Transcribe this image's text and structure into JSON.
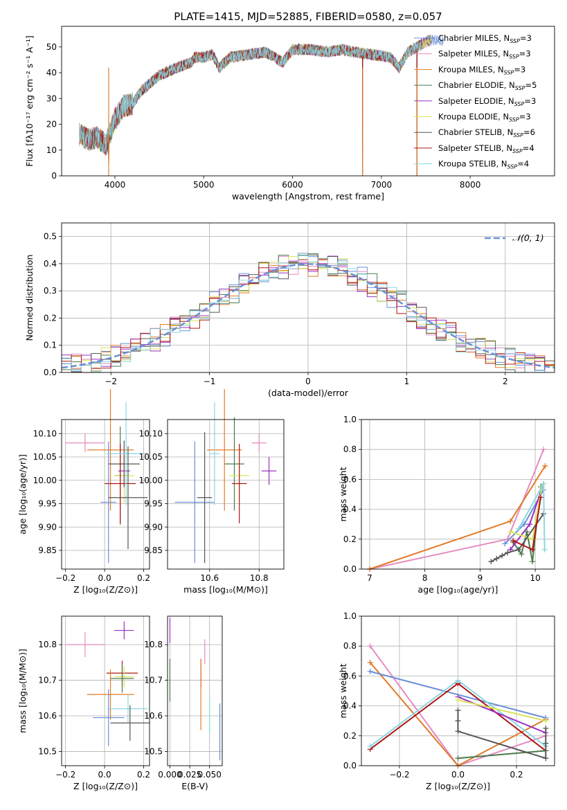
{
  "figure_title": "PLATE=1415, MJD=52885, FIBERID=0580, z=0.057",
  "colors": {
    "Chabrier MILES": "#6a8fd8",
    "Salpeter MILES": "#e58ac0",
    "Kroupa MILES": "#e07b28",
    "Chabrier ELODIE": "#4a7a4a",
    "Salpeter ELODIE": "#9b2fbf",
    "Kroupa ELODIE": "#d9e35a",
    "Chabrier STELIB": "#555555",
    "Salpeter STELIB": "#b01414",
    "Kroupa STELIB": "#8ad7e2"
  },
  "chart_data": [
    {
      "id": "spectrum",
      "type": "line",
      "title": "PLATE=1415, MJD=52885, FIBERID=0580, z=0.057",
      "xlabel": "wavelength [Angstrom, rest frame]",
      "ylabel": "Flux [fλ10⁻¹⁷ erg cm⁻² s⁻¹ A⁻¹]",
      "xlim": [
        3400,
        8950
      ],
      "ylim": [
        0,
        58
      ],
      "xticks": [
        4000,
        5000,
        6000,
        7000,
        8000
      ],
      "yticks": [
        0,
        10,
        20,
        30,
        40,
        50
      ],
      "grid": false,
      "legend_position": "right",
      "legend": [
        "Chabrier MILES, N_SSP=3",
        "Salpeter MILES, N_SSP=3",
        "Kroupa MILES, N_SSP=3",
        "Chabrier ELODIE, N_SSP=5",
        "Salpeter ELODIE, N_SSP=3",
        "Kroupa ELODIE, N_SSP=3",
        "Chabrier STELIB, N_SSP=6",
        "Salpeter STELIB, N_SSP=4",
        "Kroupa STELIB, N_SSP=4"
      ],
      "continuum": {
        "x": [
          3600,
          3700,
          3800,
          3900,
          3950,
          4000,
          4100,
          4200,
          4300,
          4400,
          4500,
          4700,
          4861,
          4900,
          5000,
          5100,
          5175,
          5300,
          5500,
          5700,
          5890,
          6000,
          6200,
          6400,
          6563,
          6700,
          6900,
          7100,
          7200,
          7300,
          7400,
          7500,
          7600,
          7700
        ],
        "y": [
          16,
          14,
          15,
          12,
          17,
          22,
          27,
          28,
          33,
          36,
          39,
          42,
          44,
          46,
          46,
          47,
          42,
          46,
          47,
          48,
          44,
          49,
          49,
          48,
          49,
          48,
          47,
          46,
          42,
          48,
          50,
          52,
          53,
          52
        ]
      },
      "features": [
        {
          "name": "drop-3930",
          "x": 3930,
          "y": 0
        },
        {
          "name": "drop-6790",
          "x": 6790,
          "y": 0
        },
        {
          "name": "drop-7400",
          "x": 7400,
          "y": 0
        }
      ]
    },
    {
      "id": "residuals",
      "type": "line",
      "xlabel": "(data-model)/error",
      "ylabel": "Normed distribution",
      "xlim": [
        -2.5,
        2.5
      ],
      "ylim": [
        0,
        0.55
      ],
      "xticks": [
        -2,
        -1,
        0,
        1,
        2
      ],
      "yticks": [
        0.0,
        0.1,
        0.2,
        0.3,
        0.4,
        0.5
      ],
      "grid": true,
      "legend_position": "top-right",
      "legend": [
        "𝒩(0, 1)"
      ],
      "bin_width": 0.1
    },
    {
      "id": "age-vs-z",
      "type": "scatter",
      "xlabel": "Z [log₁₀(Z/Z⊙)]",
      "ylabel": "age  [log₁₀(age/yr)]",
      "xlim": [
        -0.22,
        0.23
      ],
      "ylim": [
        9.81,
        10.13
      ],
      "xticks": [
        -0.2,
        0.0,
        0.2
      ],
      "yticks": [
        9.85,
        9.9,
        9.95,
        10.0,
        10.05,
        10.1
      ],
      "grid": true,
      "points": [
        {
          "model": "Salpeter MILES",
          "x": -0.1,
          "y": 10.08,
          "xerr": 0.1,
          "yerr": 0.02
        },
        {
          "model": "Kroupa MILES",
          "x": 0.03,
          "y": 10.065,
          "xerr": 0.12,
          "yerr": 0.13
        },
        {
          "model": "Chabrier MILES",
          "x": 0.02,
          "y": 9.953,
          "xerr": 0.04,
          "yerr": 0.13
        },
        {
          "model": "Chabrier ELODIE",
          "x": 0.08,
          "y": 10.01,
          "xerr": 0.03,
          "yerr": 0.105
        },
        {
          "model": "Salpeter ELODIE",
          "x": 0.1,
          "y": 10.02,
          "xerr": 0.03,
          "yerr": 0.03
        },
        {
          "model": "Kroupa ELODIE",
          "x": 0.1,
          "y": 10.01,
          "xerr": 0.05,
          "yerr": 0.06
        },
        {
          "model": "Chabrier STELIB",
          "x": 0.1,
          "y": 10.035,
          "xerr": 0.08,
          "yerr": 0.05
        },
        {
          "model": "Salpeter STELIB",
          "x": 0.08,
          "y": 9.993,
          "xerr": 0.08,
          "yerr": 0.085
        },
        {
          "model": "Kroupa STELIB",
          "x": 0.11,
          "y": 10.057,
          "xerr": 0.1,
          "yerr": 0.11
        },
        {
          "model": "Chabrier STELIB",
          "x": 0.12,
          "y": 9.963,
          "xerr": 0.1,
          "yerr": 0.11
        }
      ]
    },
    {
      "id": "age-vs-mass",
      "type": "scatter",
      "xlabel": "mass [log₁₀(M/M⊙)]",
      "xlim": [
        10.43,
        10.9
      ],
      "ylim": [
        9.81,
        10.13
      ],
      "xticks": [
        10.6,
        10.8
      ],
      "yticks": [
        9.85,
        9.9,
        9.95,
        10.0,
        10.05,
        10.1
      ],
      "grid": true,
      "points": [
        {
          "model": "Salpeter MILES",
          "x": 10.8,
          "y": 10.08,
          "xerr": 0.03,
          "yerr": 0.02
        },
        {
          "model": "Kroupa MILES",
          "x": 10.66,
          "y": 10.065,
          "xerr": 0.07,
          "yerr": 0.13
        },
        {
          "model": "Chabrier MILES",
          "x": 10.54,
          "y": 9.953,
          "xerr": 0.08,
          "yerr": 0.13
        },
        {
          "model": "Chabrier STELIB",
          "x": 10.58,
          "y": 9.963,
          "xerr": 0.03,
          "yerr": 0.14
        },
        {
          "model": "Chabrier ELODIE",
          "x": 10.7,
          "y": 10.035,
          "xerr": 0.04,
          "yerr": 0.1
        },
        {
          "model": "Salpeter ELODIE",
          "x": 10.84,
          "y": 10.02,
          "xerr": 0.03,
          "yerr": 0.03
        },
        {
          "model": "Kroupa ELODIE",
          "x": 10.72,
          "y": 10.01,
          "xerr": 0.04,
          "yerr": 0.06
        },
        {
          "model": "Salpeter STELIB",
          "x": 10.72,
          "y": 9.993,
          "xerr": 0.03,
          "yerr": 0.085
        },
        {
          "model": "Kroupa STELIB",
          "x": 10.62,
          "y": 10.057,
          "xerr": 0.02,
          "yerr": 0.11
        }
      ]
    },
    {
      "id": "mass-weight-vs-age",
      "type": "line",
      "xlabel": "age  [log₁₀(age/yr)]",
      "ylabel": "mass weight",
      "xlim": [
        6.85,
        10.35
      ],
      "ylim": [
        0,
        1
      ],
      "xticks": [
        7,
        8,
        9,
        10
      ],
      "yticks": [
        0.0,
        0.2,
        0.4,
        0.6,
        0.8,
        1.0
      ],
      "grid": true,
      "series": [
        {
          "model": "Salpeter MILES",
          "x": [
            7.0,
            9.5,
            10.15
          ],
          "y": [
            0.0,
            0.2,
            0.8
          ]
        },
        {
          "model": "Kroupa MILES",
          "x": [
            7.0,
            9.55,
            10.18
          ],
          "y": [
            0.0,
            0.32,
            0.69
          ]
        },
        {
          "model": "Chabrier MILES",
          "x": [
            9.45,
            9.8,
            10.15
          ],
          "y": [
            0.17,
            0.3,
            0.53
          ]
        },
        {
          "model": "Chabrier ELODIE",
          "x": [
            9.6,
            9.75,
            9.85,
            9.95,
            10.1
          ],
          "y": [
            0.18,
            0.1,
            0.25,
            0.05,
            0.55
          ]
        },
        {
          "model": "Salpeter ELODIE",
          "x": [
            9.55,
            9.9,
            10.15
          ],
          "y": [
            0.13,
            0.3,
            0.57
          ]
        },
        {
          "model": "Kroupa ELODIE",
          "x": [
            9.55,
            9.95,
            10.12
          ],
          "y": [
            0.25,
            0.2,
            0.55
          ]
        },
        {
          "model": "Chabrier STELIB",
          "x": [
            9.2,
            9.3,
            9.4,
            9.5,
            9.7,
            10.15
          ],
          "y": [
            0.05,
            0.07,
            0.09,
            0.11,
            0.13,
            0.37
          ]
        },
        {
          "model": "Salpeter STELIB",
          "x": [
            9.6,
            9.95,
            10.1
          ],
          "y": [
            0.19,
            0.13,
            0.48
          ]
        },
        {
          "model": "Kroupa STELIB",
          "x": [
            9.7,
            10.15,
            10.17
          ],
          "y": [
            0.27,
            0.57,
            0.13
          ]
        }
      ]
    },
    {
      "id": "mass-vs-z",
      "type": "scatter",
      "xlabel": "Z [log₁₀(Z/Z⊙)]",
      "ylabel": "mass [log₁₀(M/M⊙)]",
      "xlim": [
        -0.22,
        0.23
      ],
      "ylim": [
        10.46,
        10.88
      ],
      "xticks": [
        -0.2,
        0.0,
        0.2
      ],
      "yticks": [
        10.5,
        10.6,
        10.7,
        10.8
      ],
      "grid": true,
      "points": [
        {
          "model": "Salpeter MILES",
          "x": -0.1,
          "y": 10.8,
          "xerr": 0.1,
          "yerr": 0.035
        },
        {
          "model": "Salpeter ELODIE",
          "x": 0.1,
          "y": 10.84,
          "xerr": 0.05,
          "yerr": 0.025
        },
        {
          "model": "Salpeter STELIB",
          "x": 0.09,
          "y": 10.72,
          "xerr": 0.08,
          "yerr": 0.035
        },
        {
          "model": "Kroupa ELODIE",
          "x": 0.1,
          "y": 10.71,
          "xerr": 0.05,
          "yerr": 0.03
        },
        {
          "model": "Chabrier ELODIE",
          "x": 0.09,
          "y": 10.705,
          "xerr": 0.06,
          "yerr": 0.04
        },
        {
          "model": "Kroupa MILES",
          "x": 0.03,
          "y": 10.66,
          "xerr": 0.12,
          "yerr": 0.07
        },
        {
          "model": "Kroupa STELIB",
          "x": 0.12,
          "y": 10.62,
          "xerr": 0.1,
          "yerr": 0.04
        },
        {
          "model": "Chabrier MILES",
          "x": 0.02,
          "y": 10.595,
          "xerr": 0.08,
          "yerr": 0.08
        },
        {
          "model": "Chabrier STELIB",
          "x": 0.13,
          "y": 10.58,
          "xerr": 0.1,
          "yerr": 0.05
        }
      ]
    },
    {
      "id": "mass-vs-ebv",
      "type": "scatter",
      "xlabel": "E(B-V)",
      "xlim": [
        -0.003,
        0.066
      ],
      "ylim": [
        10.46,
        10.88
      ],
      "xticks": [
        0.0,
        0.025,
        0.05
      ],
      "yticks": [
        10.5,
        10.6,
        10.7,
        10.8
      ],
      "grid": true,
      "points": [
        {
          "model": "Salpeter ELODIE",
          "x": 0.0,
          "y": 10.84,
          "yerr": 0.035
        },
        {
          "model": "Kroupa ELODIE",
          "x": 0.0,
          "y": 10.71,
          "yerr": 0.04
        },
        {
          "model": "Chabrier ELODIE",
          "x": 0.0,
          "y": 10.7,
          "yerr": 0.06
        },
        {
          "model": "Salpeter MILES",
          "x": 0.044,
          "y": 10.78,
          "yerr": 0.035
        },
        {
          "model": "Salpeter STELIB",
          "x": 0.039,
          "y": 10.72,
          "yerr": 0.04
        },
        {
          "model": "Kroupa MILES",
          "x": 0.039,
          "y": 10.66,
          "yerr": 0.1
        },
        {
          "model": "Kroupa STELIB",
          "x": 0.05,
          "y": 10.6,
          "yerr": 0.05
        },
        {
          "model": "Chabrier MILES",
          "x": 0.063,
          "y": 10.555,
          "yerr": 0.08
        }
      ]
    },
    {
      "id": "mass-weight-vs-z",
      "type": "line",
      "xlabel": "Z [log₁₀(Z/Z⊙)]",
      "ylabel": "mass weight",
      "xlim": [
        -0.33,
        0.33
      ],
      "ylim": [
        0,
        1
      ],
      "xticks": [
        -0.2,
        0.0,
        0.2
      ],
      "yticks": [
        0.0,
        0.2,
        0.4,
        0.6,
        0.8,
        1.0
      ],
      "grid": true,
      "series": [
        {
          "model": "Salpeter MILES",
          "x": [
            -0.3,
            0.0,
            0.3
          ],
          "y": [
            0.8,
            0.0,
            0.2
          ]
        },
        {
          "model": "Kroupa MILES",
          "x": [
            -0.3,
            0.0,
            0.3
          ],
          "y": [
            0.69,
            0.0,
            0.31
          ]
        },
        {
          "model": "Chabrier MILES",
          "x": [
            -0.3,
            0.3
          ],
          "y": [
            0.63,
            0.32
          ]
        },
        {
          "model": "Salpeter STELIB",
          "x": [
            -0.3,
            0.0,
            0.3
          ],
          "y": [
            0.11,
            0.55,
            0.1
          ]
        },
        {
          "model": "Kroupa STELIB",
          "x": [
            -0.3,
            0.0,
            0.3
          ],
          "y": [
            0.13,
            0.57,
            0.13
          ]
        },
        {
          "model": "Chabrier ELODIE",
          "x": [
            0.0,
            0.3
          ],
          "y": [
            0.05,
            0.1
          ]
        },
        {
          "model": "Salpeter ELODIE",
          "x": [
            0.0,
            0.3
          ],
          "y": [
            0.46,
            0.22
          ]
        },
        {
          "model": "Kroupa ELODIE",
          "x": [
            0.0,
            0.3
          ],
          "y": [
            0.44,
            0.3
          ]
        },
        {
          "model": "Chabrier STELIB",
          "x": [
            0.0,
            0.0,
            0.0,
            0.3,
            0.3,
            0.3
          ],
          "y": [
            0.37,
            0.3,
            0.23,
            0.05,
            0.15,
            0.25
          ]
        }
      ]
    }
  ]
}
